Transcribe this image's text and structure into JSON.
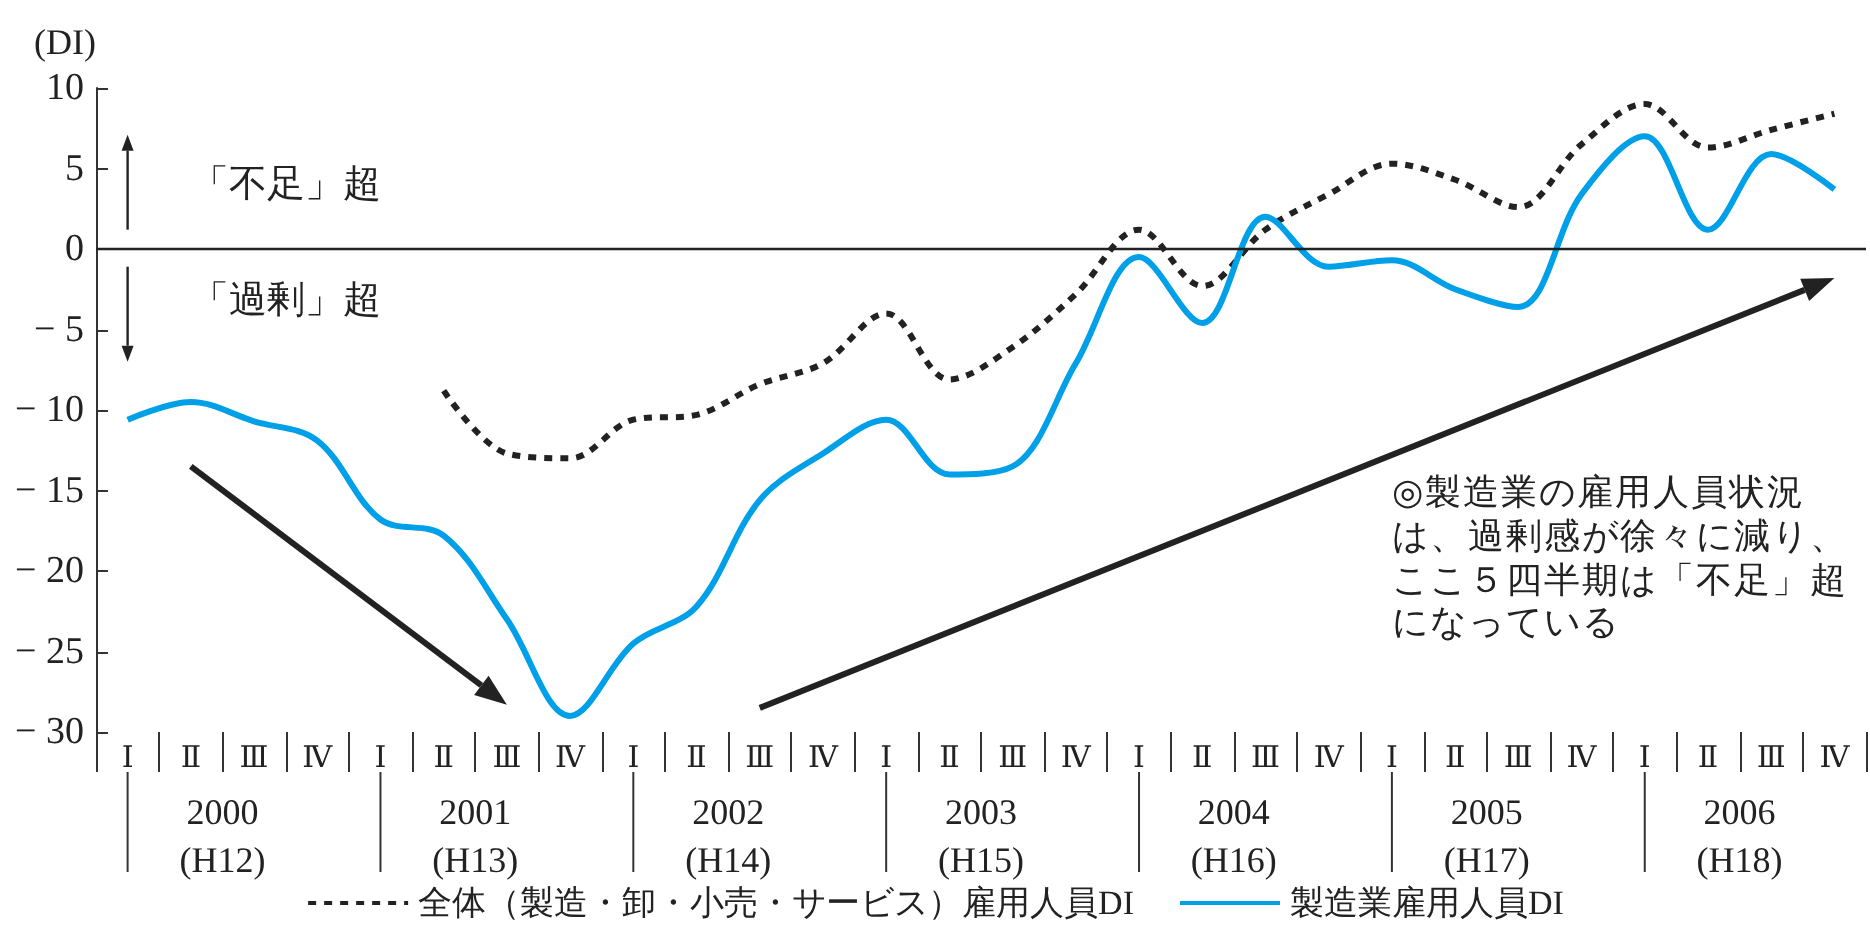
{
  "chart_data": {
    "type": "line",
    "ylabel": "(DI)",
    "categories": [
      "Ⅰ",
      "Ⅱ",
      "Ⅲ",
      "Ⅳ",
      "Ⅰ",
      "Ⅱ",
      "Ⅲ",
      "Ⅳ",
      "Ⅰ",
      "Ⅱ",
      "Ⅲ",
      "Ⅳ",
      "Ⅰ",
      "Ⅱ",
      "Ⅲ",
      "Ⅳ",
      "Ⅰ",
      "Ⅱ",
      "Ⅲ",
      "Ⅳ",
      "Ⅰ",
      "Ⅱ",
      "Ⅲ",
      "Ⅳ",
      "Ⅰ",
      "Ⅱ",
      "Ⅲ",
      "Ⅳ"
    ],
    "series": [
      {
        "name": "全体（製造・卸・小売・サービス）雇用人員DI",
        "color": "#222222",
        "line_style": "dashed",
        "values": [
          null,
          null,
          null,
          null,
          null,
          -8.8,
          -12.7,
          -13.0,
          -10.6,
          -10.3,
          -8.4,
          -7.1,
          -4.0,
          -8.1,
          -6.1,
          -2.8,
          1.2,
          -2.3,
          1.2,
          3.4,
          5.3,
          4.3,
          2.6,
          6.5,
          9.0,
          6.3,
          7.4,
          8.4
        ]
      },
      {
        "name": "製造業雇用人員DI",
        "color": "#00a0e9",
        "line_style": "solid",
        "values": [
          -10.6,
          -9.5,
          -10.7,
          -11.9,
          -16.8,
          -17.8,
          -23.0,
          -29.0,
          -24.5,
          -22.2,
          -15.6,
          -12.7,
          -10.6,
          -14.0,
          -13.5,
          -7.1,
          -0.5,
          -4.6,
          2.0,
          -1.1,
          -0.7,
          -2.5,
          -3.6,
          3.4,
          7.0,
          1.2,
          5.9,
          3.7
        ]
      }
    ],
    "ylim": [
      -30,
      10
    ],
    "yticks": [
      -30,
      -25,
      -20,
      -15,
      -10,
      -5,
      0,
      5,
      10
    ],
    "ref_lines": [
      {
        "axis": "y",
        "value": 0,
        "color": "#222222"
      }
    ],
    "annotations": [
      "「不足」超",
      "「過剰」超",
      "◎製造業の雇用人員状況は、過剰感が徐々に減り、ここ５四半期は「不足」超になっている",
      "2000\n(H12)",
      "2001\n(H13)",
      "2002\n(H14)",
      "2003\n(H15)",
      "2004\n(H16)",
      "2005\n(H17)",
      "2006\n(H18)"
    ],
    "marker": "none",
    "legend": "bottom"
  }
}
